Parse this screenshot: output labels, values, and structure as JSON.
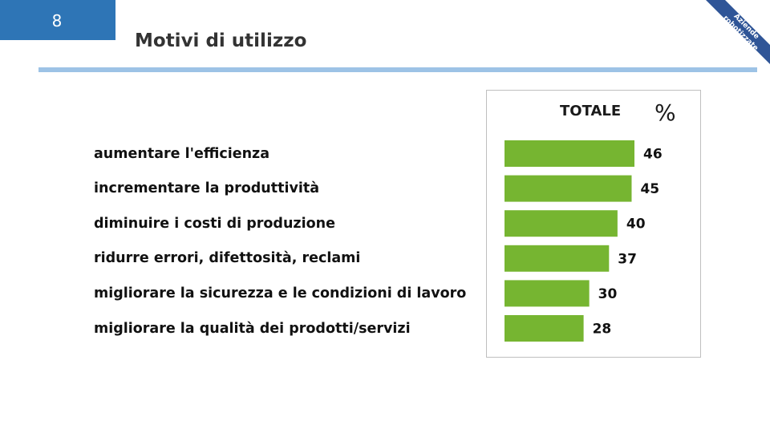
{
  "slide": {
    "page_number": "8",
    "title": "Motivi di utilizzo",
    "ribbon": {
      "line1": "Aziende",
      "line2": "robotizzate"
    }
  },
  "colors": {
    "page_box": "#2e75b6",
    "title_rule": "#9dc3e6",
    "ribbon": "#2f5597",
    "bar": "#76b531"
  },
  "chart_data": {
    "type": "bar",
    "orientation": "horizontal",
    "title": "TOTALE",
    "unit": "%",
    "categories": [
      "aumentare l'efficienza",
      "incrementare la produttività",
      "diminuire i costi di produzione",
      "ridurre errori, difettosità, reclami",
      "migliorare la sicurezza e le condizioni di lavoro",
      "migliorare la qualità dei prodotti/servizi"
    ],
    "values": [
      46,
      45,
      40,
      37,
      30,
      28
    ],
    "xlim": [
      0,
      46
    ],
    "grid": false,
    "legend": "none"
  }
}
